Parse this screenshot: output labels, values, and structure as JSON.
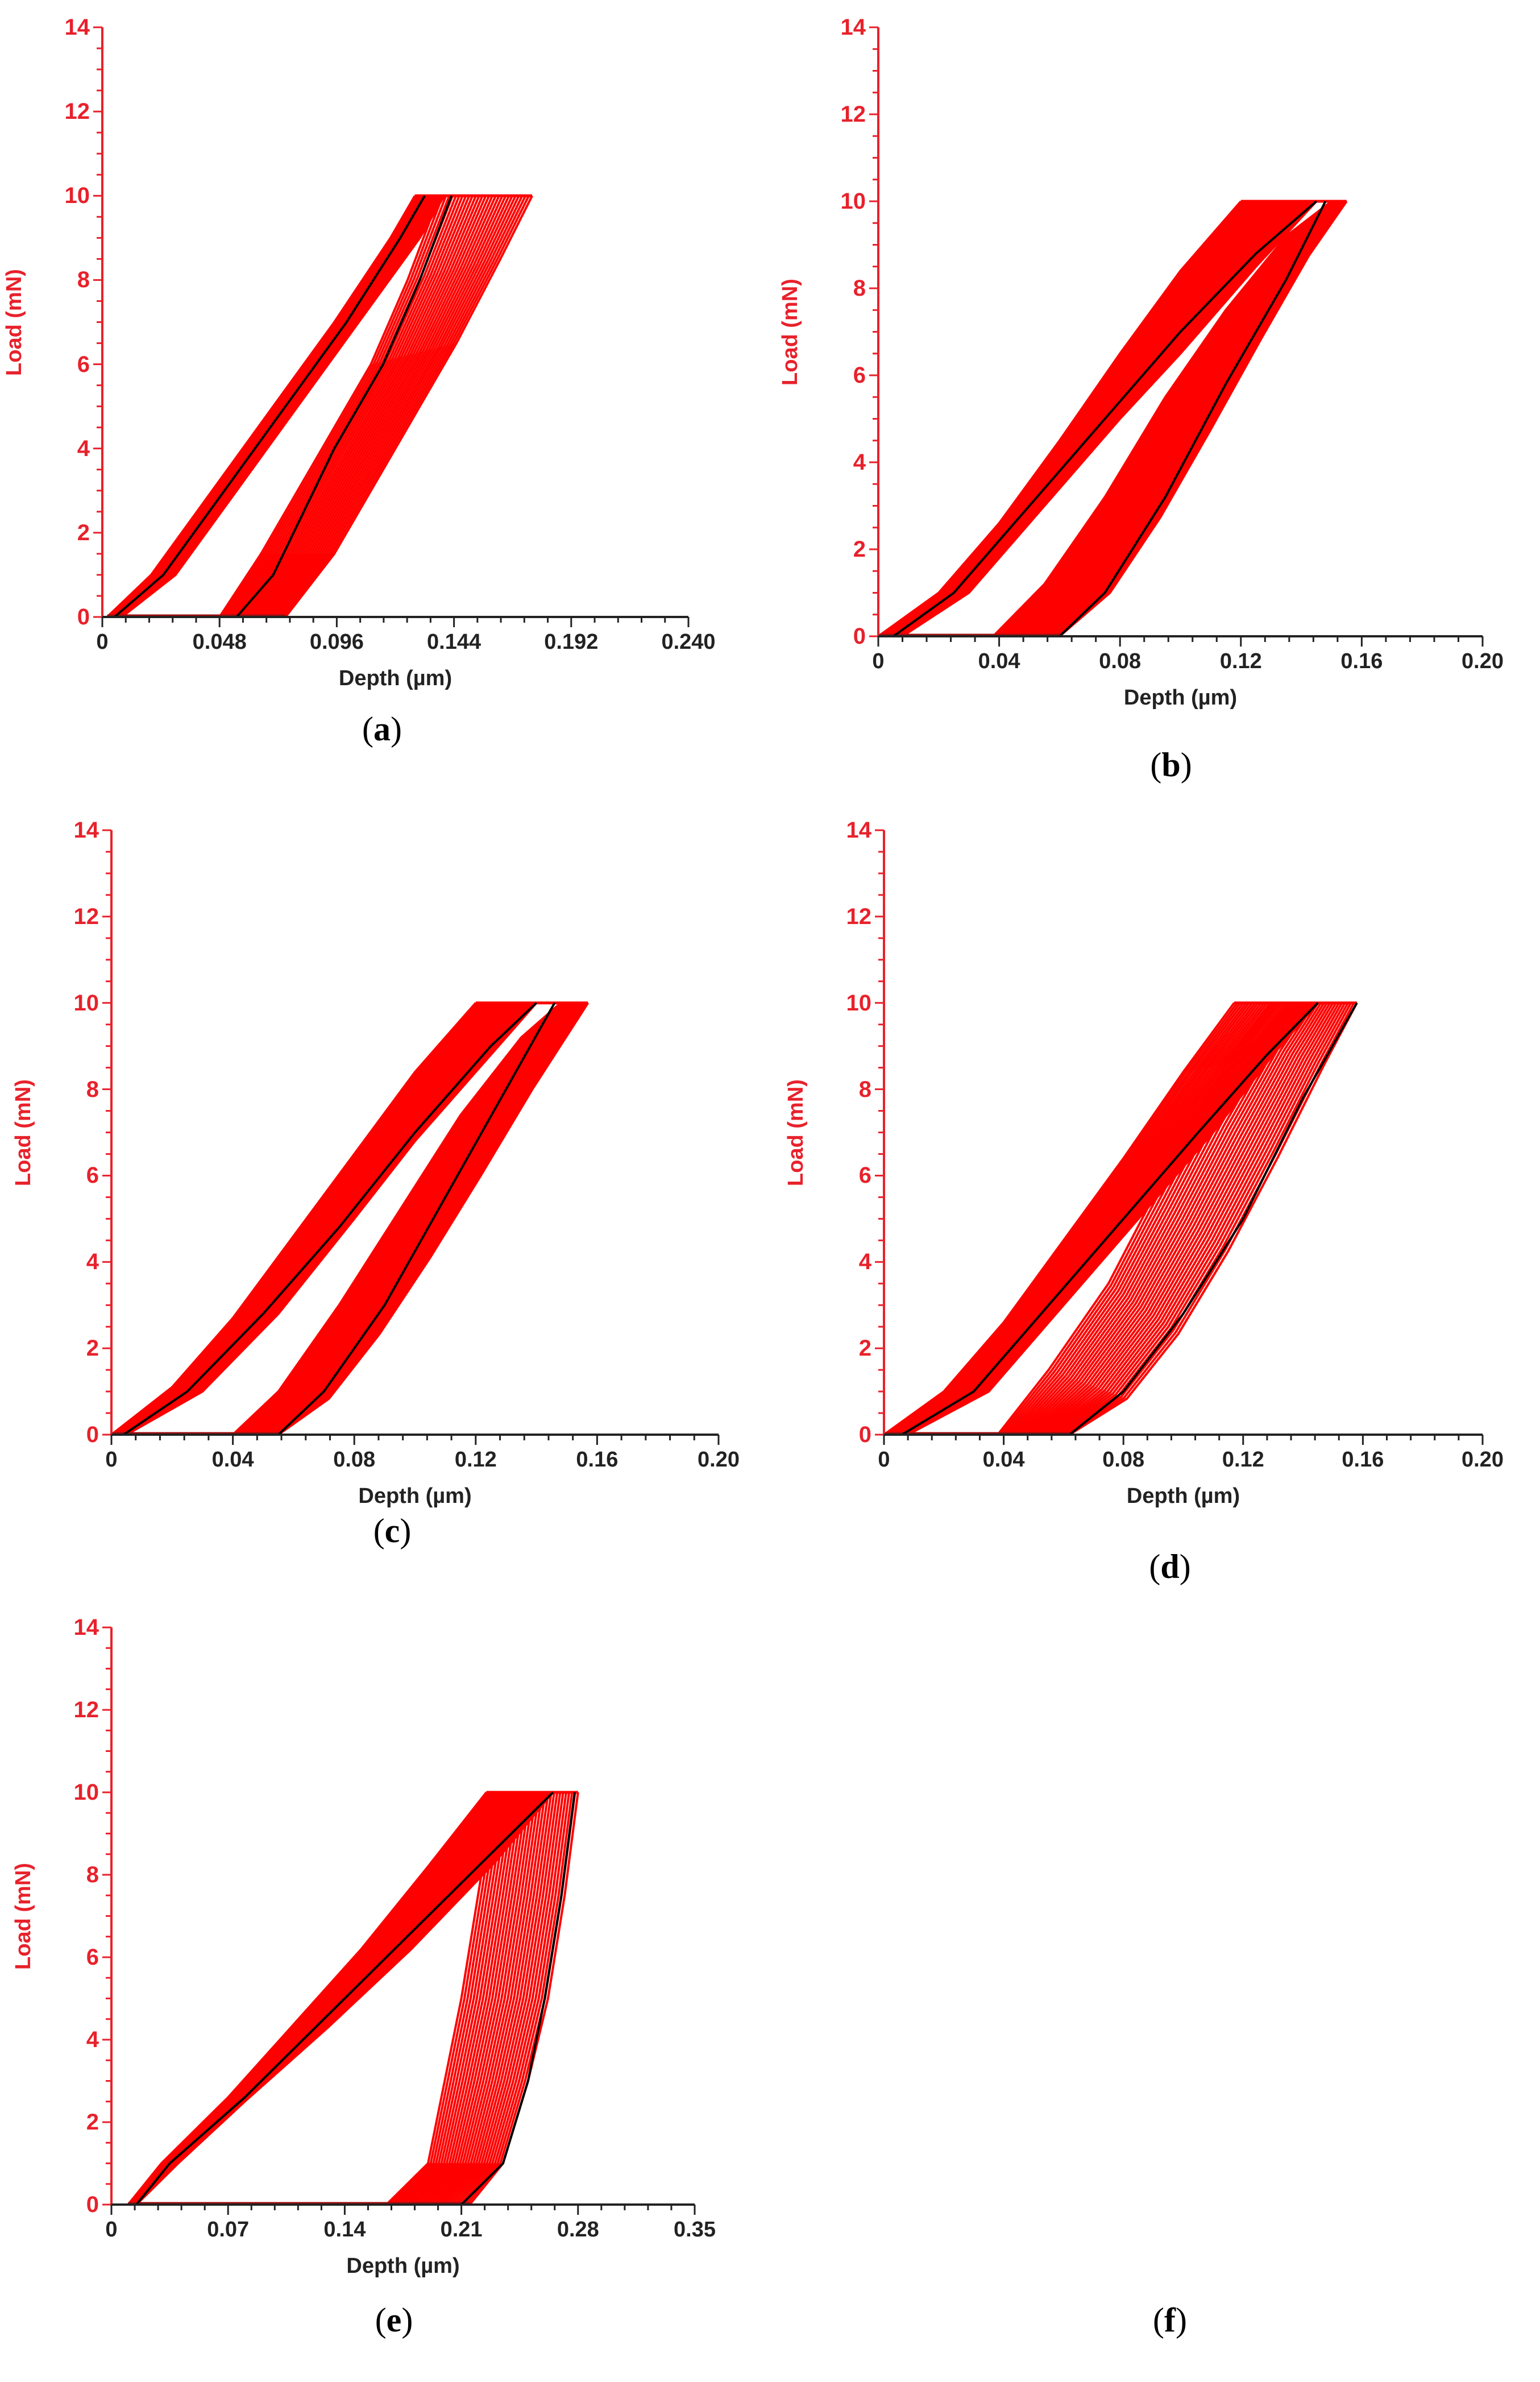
{
  "figure": {
    "panels": [
      "a",
      "b",
      "c",
      "d",
      "e",
      "f"
    ]
  },
  "colors": {
    "curve_red": "#ff0000",
    "mean_black": "#000000",
    "y_axis_red": "#e8212b",
    "x_axis_black": "#222222"
  },
  "chart_data": [
    {
      "panel": "a",
      "caption": "(a)",
      "caption_letter": "a",
      "type": "line",
      "title": "",
      "xlabel": "Depth (µm)",
      "ylabel": "Load (mN)",
      "xlim": [
        0,
        0.24
      ],
      "ylim": [
        0,
        14
      ],
      "x_ticks": [
        "0",
        "0.048",
        "0.096",
        "0.144",
        "0.192",
        "0.240"
      ],
      "y_ticks": [
        "0",
        "2",
        "4",
        "6",
        "8",
        "10",
        "12",
        "14"
      ],
      "grid": false,
      "legend": null,
      "series": [
        {
          "name": "loading (band of many red curves, lower edge)",
          "x": [
            0.002,
            0.02,
            0.045,
            0.07,
            0.095,
            0.118,
            0.128
          ],
          "y": [
            0,
            1,
            3,
            5,
            7,
            9,
            10
          ]
        },
        {
          "name": "loading (band, upper edge)",
          "x": [
            0.008,
            0.03,
            0.055,
            0.08,
            0.105,
            0.13,
            0.14
          ],
          "y": [
            0,
            1,
            3,
            5,
            7,
            9,
            10
          ]
        },
        {
          "name": "unloading (band, left edge)",
          "x": [
            0.048,
            0.065,
            0.09,
            0.11,
            0.125,
            0.138
          ],
          "y": [
            0,
            1.5,
            4,
            6,
            8,
            10
          ]
        },
        {
          "name": "unloading (band, right edge)",
          "x": [
            0.075,
            0.095,
            0.12,
            0.145,
            0.163,
            0.176
          ],
          "y": [
            0,
            1.5,
            4,
            6.5,
            8.5,
            10
          ]
        },
        {
          "name": "mean loading (black)",
          "x": [
            0.005,
            0.025,
            0.05,
            0.075,
            0.1,
            0.122,
            0.132
          ],
          "y": [
            0,
            1,
            3,
            5,
            7,
            9,
            10
          ]
        },
        {
          "name": "mean unloading (black)",
          "x": [
            0.055,
            0.07,
            0.095,
            0.115,
            0.13,
            0.143
          ],
          "y": [
            0,
            1,
            4,
            6,
            8,
            10
          ]
        }
      ],
      "max_load": 10
    },
    {
      "panel": "b",
      "caption": "(b)",
      "caption_letter": "b",
      "type": "line",
      "title": "",
      "xlabel": "Depth (µm)",
      "ylabel": "Load (mN)",
      "xlim": [
        0,
        0.2
      ],
      "ylim": [
        0,
        14
      ],
      "x_ticks": [
        "0",
        "0.04",
        "0.08",
        "0.12",
        "0.16",
        "0.20"
      ],
      "y_ticks": [
        "0",
        "2",
        "4",
        "6",
        "8",
        "10",
        "12",
        "14"
      ],
      "grid": false,
      "legend": null,
      "series": [
        {
          "name": "loading (band, upper-left edge)",
          "x": [
            0.0,
            0.02,
            0.04,
            0.06,
            0.08,
            0.1,
            0.12
          ],
          "y": [
            0,
            1,
            2.6,
            4.5,
            6.5,
            8.4,
            10
          ]
        },
        {
          "name": "loading (band, lower-right edge)",
          "x": [
            0.008,
            0.03,
            0.055,
            0.08,
            0.1,
            0.125,
            0.145
          ],
          "y": [
            0,
            1,
            3,
            5,
            6.5,
            8.5,
            10
          ]
        },
        {
          "name": "unloading (band, left edge)",
          "x": [
            0.038,
            0.055,
            0.075,
            0.095,
            0.115,
            0.135,
            0.15
          ],
          "y": [
            0,
            1.2,
            3.2,
            5.5,
            7.5,
            9.2,
            10
          ]
        },
        {
          "name": "unloading (band, right edge)",
          "x": [
            0.06,
            0.08,
            0.1,
            0.12,
            0.14,
            0.155
          ],
          "y": [
            0,
            1.2,
            3.5,
            6,
            8.5,
            10
          ]
        },
        {
          "name": "mean loading (black)",
          "x": [
            0.005,
            0.025,
            0.05,
            0.075,
            0.1,
            0.125,
            0.145
          ],
          "y": [
            0,
            1,
            3,
            5,
            7,
            8.8,
            10
          ]
        },
        {
          "name": "mean unloading (black)",
          "x": [
            0.06,
            0.075,
            0.095,
            0.115,
            0.135,
            0.148
          ],
          "y": [
            0,
            1,
            3.2,
            5.8,
            8.2,
            10
          ]
        }
      ],
      "max_load": 10
    },
    {
      "panel": "c",
      "caption": "(c)",
      "caption_letter": "c",
      "type": "line",
      "title": "",
      "xlabel": "Depth (µm)",
      "ylabel": "Load (mN)",
      "xlim": [
        0,
        0.2
      ],
      "ylim": [
        0,
        14
      ],
      "x_ticks": [
        "0",
        "0.04",
        "0.08",
        "0.12",
        "0.16",
        "0.20"
      ],
      "y_ticks": [
        "0",
        "2",
        "4",
        "6",
        "8",
        "10",
        "12",
        "14"
      ],
      "grid": false,
      "legend": null,
      "series": [
        {
          "name": "loading (band, upper-left edge)",
          "x": [
            0.0,
            0.02,
            0.04,
            0.06,
            0.08,
            0.1,
            0.12
          ],
          "y": [
            0,
            1.1,
            2.7,
            4.6,
            6.5,
            8.4,
            10
          ]
        },
        {
          "name": "loading (band, lower-right edge)",
          "x": [
            0.005,
            0.03,
            0.055,
            0.08,
            0.1,
            0.125,
            0.14
          ],
          "y": [
            0,
            1,
            2.8,
            5,
            6.8,
            8.8,
            10
          ]
        },
        {
          "name": "unloading (band, left edge)",
          "x": [
            0.04,
            0.055,
            0.075,
            0.095,
            0.115,
            0.135,
            0.148
          ],
          "y": [
            0,
            1,
            3,
            5.2,
            7.4,
            9.2,
            10
          ]
        },
        {
          "name": "unloading (band, right edge)",
          "x": [
            0.055,
            0.075,
            0.095,
            0.115,
            0.135,
            0.157
          ],
          "y": [
            0,
            1,
            3,
            5.2,
            7.6,
            10
          ]
        },
        {
          "name": "mean loading (black)",
          "x": [
            0.004,
            0.025,
            0.05,
            0.075,
            0.1,
            0.125,
            0.14
          ],
          "y": [
            0,
            1,
            2.8,
            4.8,
            7,
            9,
            10
          ]
        },
        {
          "name": "mean unloading (black)",
          "x": [
            0.055,
            0.07,
            0.09,
            0.11,
            0.13,
            0.146
          ],
          "y": [
            0,
            1,
            3,
            5.5,
            8,
            10
          ]
        }
      ],
      "max_load": 10
    },
    {
      "panel": "d",
      "caption": "(d)",
      "caption_letter": "d",
      "type": "line",
      "title": "",
      "xlabel": "Depth (µm)",
      "ylabel": "Load (mN)",
      "xlim": [
        0,
        0.2
      ],
      "ylim": [
        0,
        14
      ],
      "x_ticks": [
        "0",
        "0.04",
        "0.08",
        "0.12",
        "0.16",
        "0.20"
      ],
      "y_ticks": [
        "0",
        "2",
        "4",
        "6",
        "8",
        "10",
        "12",
        "14"
      ],
      "grid": false,
      "legend": null,
      "series": [
        {
          "name": "loading (band, upper-left edge)",
          "x": [
            0.0,
            0.02,
            0.04,
            0.06,
            0.08,
            0.1,
            0.117
          ],
          "y": [
            0,
            1,
            2.6,
            4.5,
            6.4,
            8.4,
            10
          ]
        },
        {
          "name": "loading (band, lower-right edge)",
          "x": [
            0.008,
            0.035,
            0.06,
            0.085,
            0.11,
            0.13,
            0.145
          ],
          "y": [
            0,
            1,
            3,
            5,
            7,
            8.8,
            10
          ]
        },
        {
          "name": "unloading (band, left edge)",
          "x": [
            0.038,
            0.055,
            0.075,
            0.09,
            0.105,
            0.12,
            0.13
          ],
          "y": [
            0,
            1.5,
            3.5,
            5.5,
            7.5,
            9.2,
            10
          ]
        },
        {
          "name": "unloading (band, right edge)",
          "x": [
            0.062,
            0.085,
            0.105,
            0.125,
            0.145,
            0.158
          ],
          "y": [
            0,
            1,
            3,
            5.5,
            8.3,
            10
          ]
        },
        {
          "name": "mean loading (black)",
          "x": [
            0.006,
            0.03,
            0.055,
            0.08,
            0.105,
            0.128,
            0.145
          ],
          "y": [
            0,
            1,
            3,
            5,
            7,
            8.8,
            10
          ]
        },
        {
          "name": "mean unloading (black)",
          "x": [
            0.062,
            0.08,
            0.1,
            0.12,
            0.14,
            0.158
          ],
          "y": [
            0,
            1,
            2.8,
            5,
            7.8,
            10
          ]
        }
      ],
      "max_load": 10
    },
    {
      "panel": "e",
      "caption": "(e)",
      "caption_letter": "e",
      "type": "line",
      "title": "",
      "xlabel": "Depth (µm)",
      "ylabel": "Load (mN)",
      "xlim": [
        0,
        0.35
      ],
      "ylim": [
        0,
        14
      ],
      "x_ticks": [
        "0",
        "0.07",
        "0.14",
        "0.21",
        "0.28",
        "0.35"
      ],
      "y_ticks": [
        "0",
        "2",
        "4",
        "6",
        "8",
        "10",
        "12",
        "14"
      ],
      "grid": false,
      "legend": null,
      "series": [
        {
          "name": "loading (band, upper-left edge)",
          "x": [
            0.01,
            0.03,
            0.07,
            0.11,
            0.15,
            0.19,
            0.225
          ],
          "y": [
            0,
            1,
            2.6,
            4.4,
            6.2,
            8.2,
            10
          ]
        },
        {
          "name": "loading (band, lower-right edge)",
          "x": [
            0.015,
            0.04,
            0.08,
            0.13,
            0.18,
            0.23,
            0.265
          ],
          "y": [
            0,
            1,
            2.5,
            4.3,
            6.2,
            8.3,
            10
          ]
        },
        {
          "name": "unloading (band, left edge)",
          "x": [
            0.165,
            0.19,
            0.2,
            0.21,
            0.22,
            0.23
          ],
          "y": [
            0,
            1,
            3,
            5,
            7.5,
            10
          ]
        },
        {
          "name": "unloading (band, right edge)",
          "x": [
            0.215,
            0.235,
            0.25,
            0.262,
            0.272,
            0.28
          ],
          "y": [
            0,
            1,
            3,
            5,
            7.5,
            10
          ]
        },
        {
          "name": "mean loading (black)",
          "x": [
            0.015,
            0.035,
            0.08,
            0.125,
            0.17,
            0.22,
            0.265
          ],
          "y": [
            0,
            1,
            2.6,
            4.4,
            6.2,
            8.2,
            10
          ]
        },
        {
          "name": "mean unloading (black)",
          "x": [
            0.21,
            0.235,
            0.25,
            0.26,
            0.27,
            0.278
          ],
          "y": [
            0,
            1,
            3,
            5,
            7.5,
            10
          ]
        }
      ],
      "max_load": 10
    }
  ],
  "empty_panel": {
    "caption": "(f)",
    "caption_letter": "f"
  }
}
